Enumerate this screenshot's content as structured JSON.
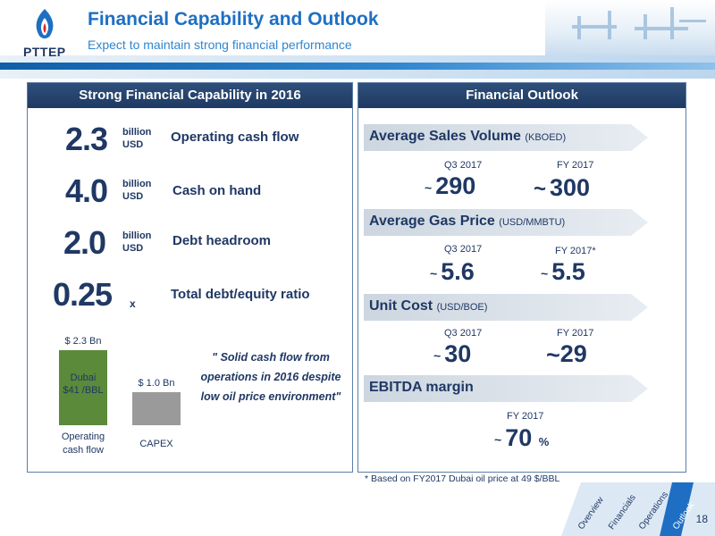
{
  "header": {
    "logo_text": "PTTEP",
    "title": "Financial Capability and Outlook",
    "subtitle": "Expect to maintain strong financial performance"
  },
  "left": {
    "heading": "Strong Financial Capability in 2016",
    "metrics": [
      {
        "value": "2.3",
        "unit_line1": "billion",
        "unit_line2": "USD",
        "label": "Operating cash flow"
      },
      {
        "value": "4.0",
        "unit_line1": "billion",
        "unit_line2": "USD",
        "label": "Cash on hand"
      },
      {
        "value": "2.0",
        "unit_line1": "billion",
        "unit_line2": "USD",
        "label": "Debt headroom"
      },
      {
        "value": "0.25",
        "unit_line1": "x",
        "unit_line2": "",
        "label": "Total debt/equity ratio"
      }
    ],
    "bars": [
      {
        "top_label": "$ 2.3 Bn",
        "inner_line1": "Dubai",
        "inner_line2": "$41 /BBL",
        "cat_line1": "Operating",
        "cat_line2": "cash flow",
        "value": 2.3,
        "color": "#5a8a3a"
      },
      {
        "top_label": "$ 1.0 Bn",
        "inner_line1": "",
        "inner_line2": "",
        "cat_line1": "CAPEX",
        "cat_line2": "",
        "value": 1.0,
        "color": "#9a9a9a"
      }
    ],
    "quote": "\" Solid cash flow from operations in 2016 despite low oil price environment\""
  },
  "right": {
    "heading": "Financial Outlook",
    "sections": [
      {
        "title": "Average Sales Volume",
        "unit": "(KBOED)",
        "c1_label": "Q3 2017",
        "c1_value": "290",
        "c2_label": "FY 2017",
        "c2_value": "300"
      },
      {
        "title": "Average Gas Price",
        "unit": "(USD/MMBTU)",
        "c1_label": "Q3 2017",
        "c1_value": "5.6",
        "c2_label": "FY 2017*",
        "c2_value": "5.5"
      },
      {
        "title": "Unit Cost",
        "unit": "(USD/BOE)",
        "c1_label": "Q3 2017",
        "c1_value": "30",
        "c2_label": "FY 2017",
        "c2_value": "29"
      },
      {
        "title": "EBITDA margin",
        "unit": "",
        "c1_label": "",
        "c1_value": "",
        "c2_label": "FY 2017",
        "c2_value": "70",
        "c2_suffix": "%"
      }
    ],
    "tilde": "~",
    "footnote": "* Based on FY2017 Dubai oil price at 49 $/BBL"
  },
  "nav": {
    "tabs": [
      "Overview",
      "Financials",
      "Operations",
      "Outlook"
    ],
    "active": "Outlook",
    "page_number": "18"
  },
  "colors": {
    "navy": "#1f3864",
    "accent_blue": "#1e6fc3",
    "bar_green": "#5a8a3a",
    "bar_grey": "#9a9a9a"
  }
}
